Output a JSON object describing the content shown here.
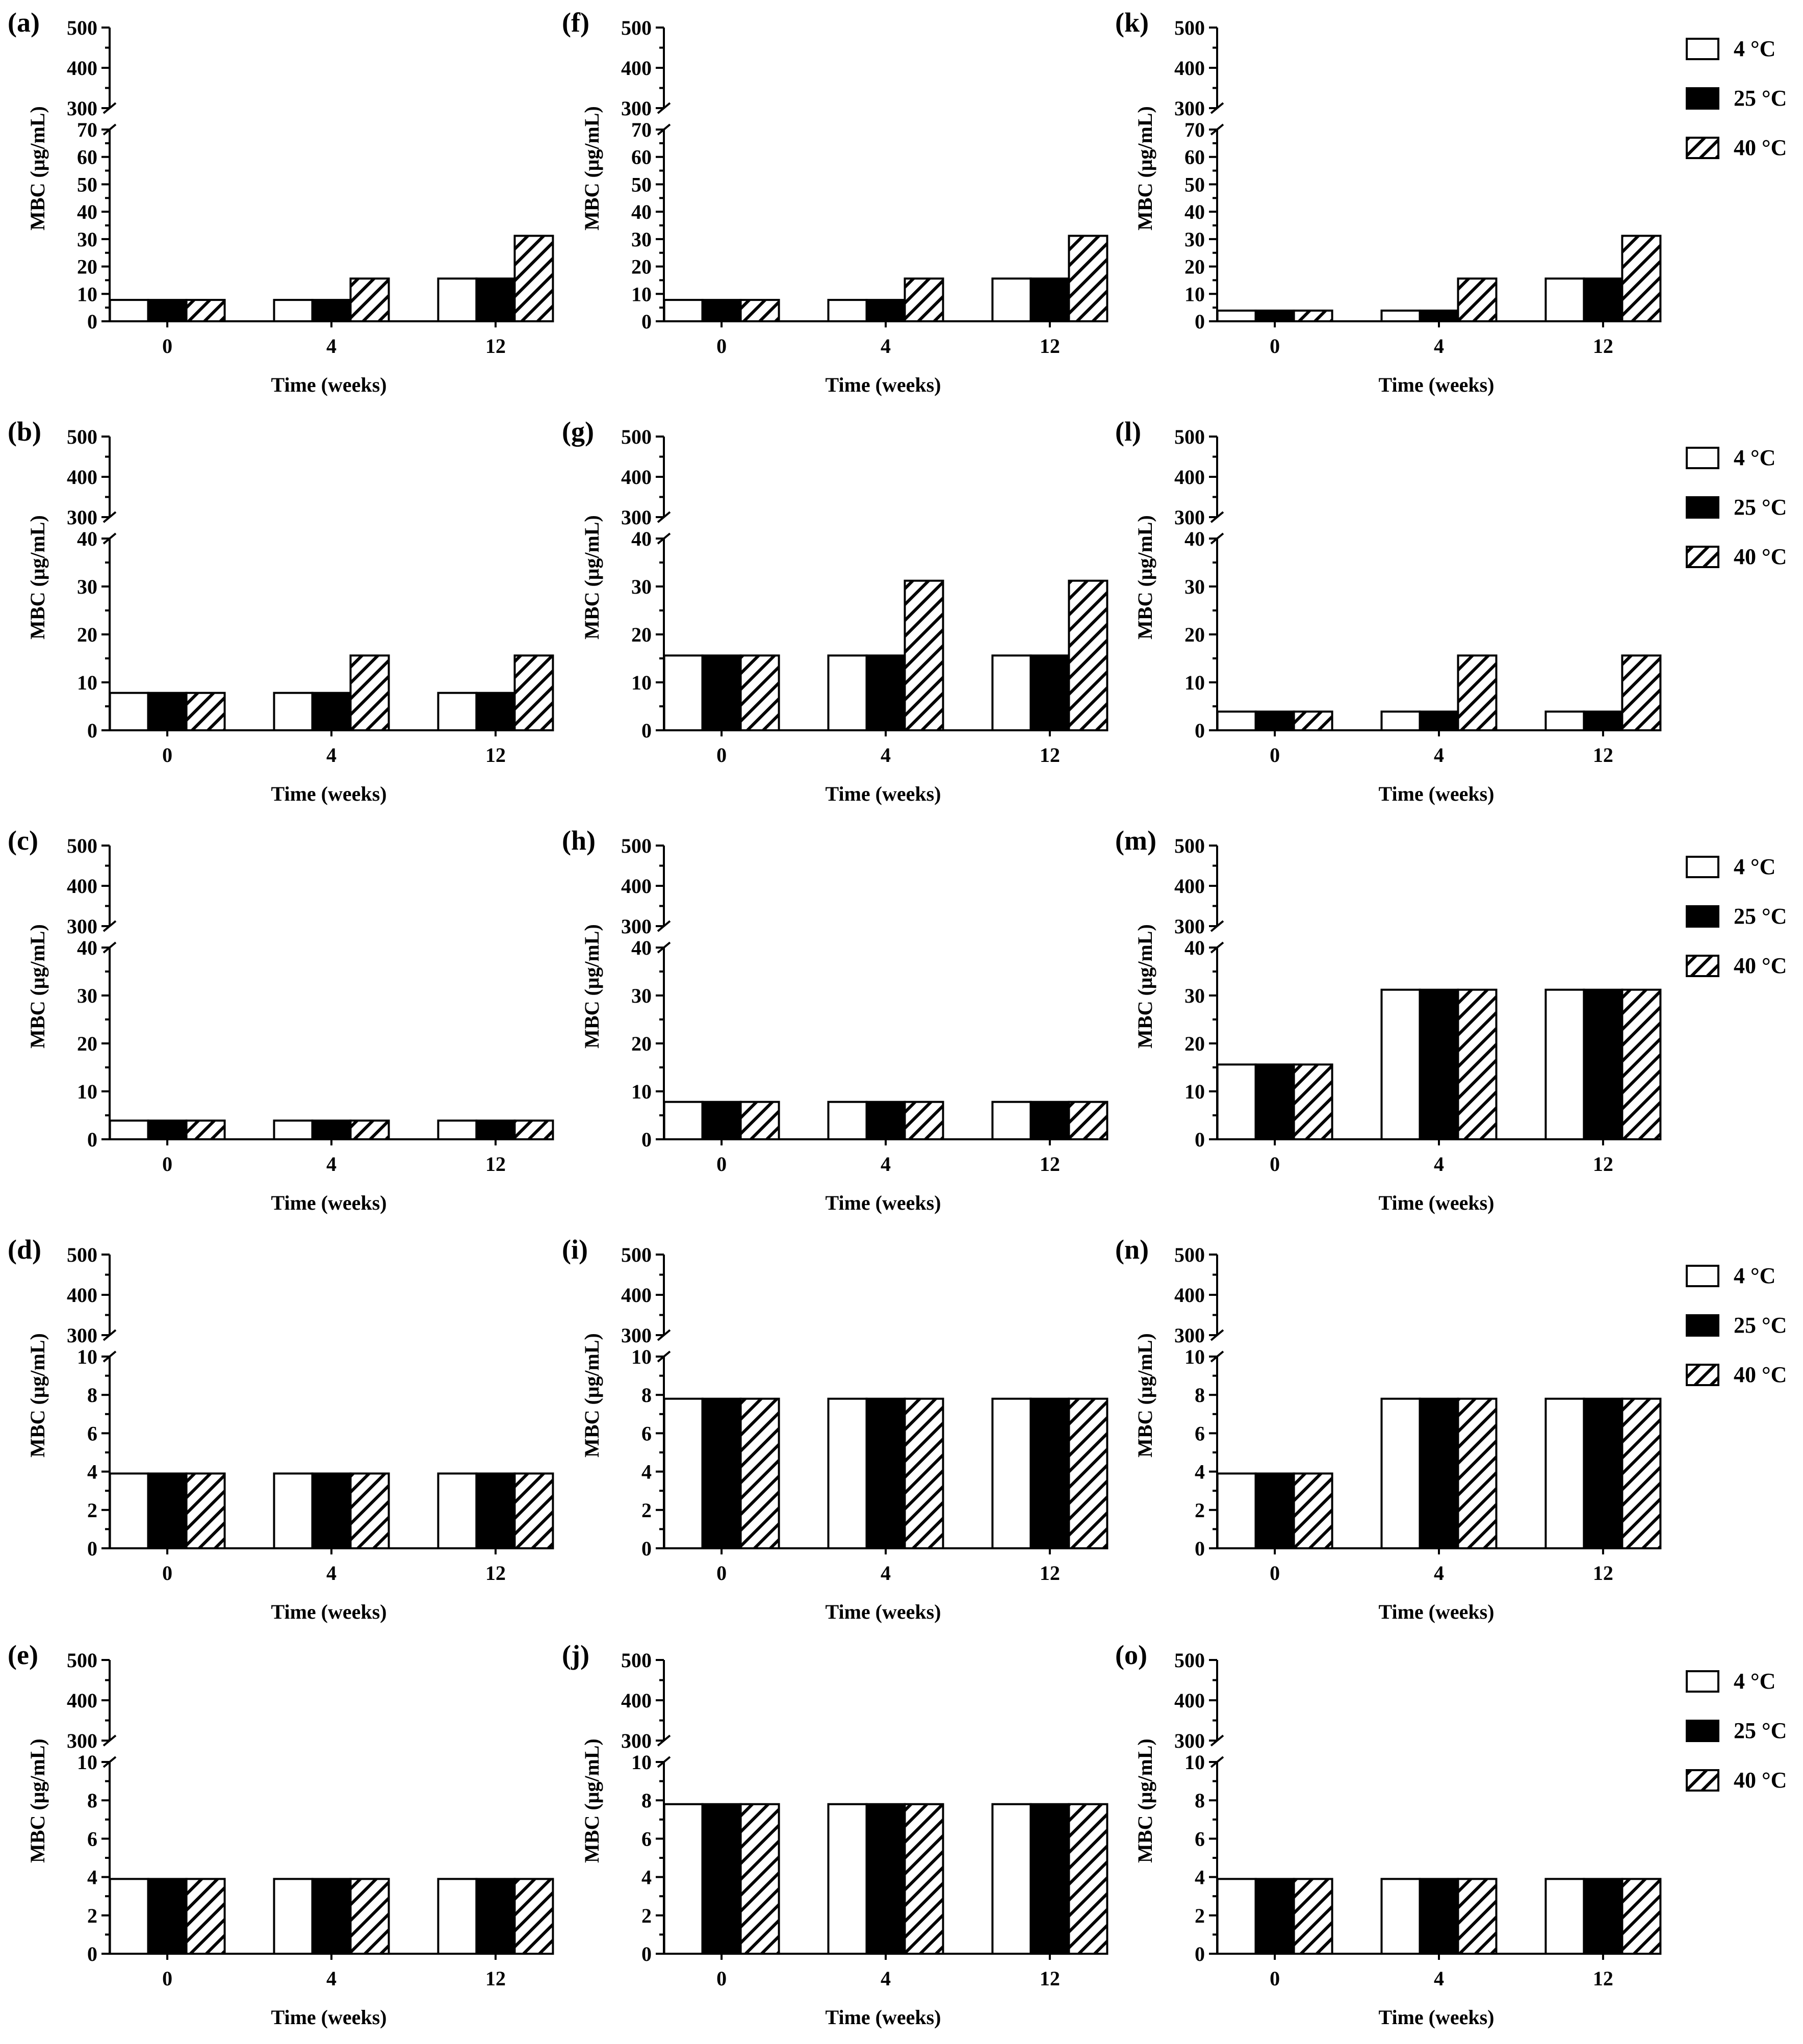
{
  "series_names": [
    "4 °C",
    "25 °C",
    "40 °C"
  ],
  "chart_data": [
    {
      "type": "bar",
      "panel_label": "(a)",
      "categories": [
        "0",
        "4",
        "12"
      ],
      "xlabel": "Time (weeks)",
      "ylabel": "MBC (μg/mL)",
      "upper_ticks": [
        "300",
        "400",
        "500"
      ],
      "lower_ticks": [
        "0",
        "10",
        "20",
        "30",
        "40",
        "50",
        "60",
        "70"
      ],
      "lower_ylim": [
        0,
        70
      ],
      "upper_ylim": [
        300,
        500
      ],
      "y_break": [
        70,
        300
      ],
      "series": [
        {
          "name": "4 °C",
          "values": [
            7.8,
            7.8,
            15.6
          ]
        },
        {
          "name": "25 °C",
          "values": [
            7.8,
            7.8,
            15.6
          ]
        },
        {
          "name": "40 °C",
          "values": [
            7.8,
            15.6,
            31.2
          ]
        }
      ]
    },
    {
      "type": "bar",
      "panel_label": "(b)",
      "categories": [
        "0",
        "4",
        "12"
      ],
      "xlabel": "Time (weeks)",
      "ylabel": "MBC (μg/mL)",
      "upper_ticks": [
        "300",
        "400",
        "500"
      ],
      "lower_ticks": [
        "0",
        "10",
        "20",
        "30",
        "40"
      ],
      "lower_ylim": [
        0,
        40
      ],
      "upper_ylim": [
        300,
        500
      ],
      "y_break": [
        40,
        300
      ],
      "series": [
        {
          "name": "4 °C",
          "values": [
            7.8,
            7.8,
            7.8
          ]
        },
        {
          "name": "25 °C",
          "values": [
            7.8,
            7.8,
            7.8
          ]
        },
        {
          "name": "40 °C",
          "values": [
            7.8,
            15.6,
            15.6
          ]
        }
      ]
    },
    {
      "type": "bar",
      "panel_label": "(c)",
      "categories": [
        "0",
        "4",
        "12"
      ],
      "xlabel": "Time (weeks)",
      "ylabel": "MBC (μg/mL)",
      "upper_ticks": [
        "300",
        "400",
        "500"
      ],
      "lower_ticks": [
        "0",
        "10",
        "20",
        "30",
        "40"
      ],
      "lower_ylim": [
        0,
        40
      ],
      "upper_ylim": [
        300,
        500
      ],
      "y_break": [
        40,
        300
      ],
      "series": [
        {
          "name": "4 °C",
          "values": [
            3.9,
            3.9,
            3.9
          ]
        },
        {
          "name": "25 °C",
          "values": [
            3.9,
            3.9,
            3.9
          ]
        },
        {
          "name": "40 °C",
          "values": [
            3.9,
            3.9,
            3.9
          ]
        }
      ]
    },
    {
      "type": "bar",
      "panel_label": "(d)",
      "categories": [
        "0",
        "4",
        "12"
      ],
      "xlabel": "Time (weeks)",
      "ylabel": "MBC (μg/mL)",
      "upper_ticks": [
        "300",
        "400",
        "500"
      ],
      "lower_ticks": [
        "0",
        "2",
        "4",
        "6",
        "8",
        "10"
      ],
      "lower_ylim": [
        0,
        10
      ],
      "upper_ylim": [
        300,
        500
      ],
      "y_break": [
        10,
        300
      ],
      "series": [
        {
          "name": "4 °C",
          "values": [
            3.9,
            3.9,
            3.9
          ]
        },
        {
          "name": "25 °C",
          "values": [
            3.9,
            3.9,
            3.9
          ]
        },
        {
          "name": "40 °C",
          "values": [
            3.9,
            3.9,
            3.9
          ]
        }
      ]
    },
    {
      "type": "bar",
      "panel_label": "(e)",
      "categories": [
        "0",
        "4",
        "12"
      ],
      "xlabel": "Time (weeks)",
      "ylabel": "MBC (μg/mL)",
      "upper_ticks": [
        "300",
        "400",
        "500"
      ],
      "lower_ticks": [
        "0",
        "2",
        "4",
        "6",
        "8",
        "10"
      ],
      "lower_ylim": [
        0,
        10
      ],
      "upper_ylim": [
        300,
        500
      ],
      "y_break": [
        10,
        300
      ],
      "series": [
        {
          "name": "4 °C",
          "values": [
            3.9,
            3.9,
            3.9
          ]
        },
        {
          "name": "25 °C",
          "values": [
            3.9,
            3.9,
            3.9
          ]
        },
        {
          "name": "40 °C",
          "values": [
            3.9,
            3.9,
            3.9
          ]
        }
      ]
    },
    {
      "type": "bar",
      "panel_label": "(f)",
      "categories": [
        "0",
        "4",
        "12"
      ],
      "xlabel": "Time (weeks)",
      "ylabel": "MBC (μg/mL)",
      "upper_ticks": [
        "300",
        "400",
        "500"
      ],
      "lower_ticks": [
        "0",
        "10",
        "20",
        "30",
        "40",
        "50",
        "60",
        "70"
      ],
      "lower_ylim": [
        0,
        70
      ],
      "upper_ylim": [
        300,
        500
      ],
      "y_break": [
        70,
        300
      ],
      "series": [
        {
          "name": "4 °C",
          "values": [
            7.8,
            7.8,
            15.6
          ]
        },
        {
          "name": "25 °C",
          "values": [
            7.8,
            7.8,
            15.6
          ]
        },
        {
          "name": "40 °C",
          "values": [
            7.8,
            15.6,
            31.2
          ]
        }
      ]
    },
    {
      "type": "bar",
      "panel_label": "(g)",
      "categories": [
        "0",
        "4",
        "12"
      ],
      "xlabel": "Time (weeks)",
      "ylabel": "MBC (μg/mL)",
      "upper_ticks": [
        "300",
        "400",
        "500"
      ],
      "lower_ticks": [
        "0",
        "10",
        "20",
        "30",
        "40"
      ],
      "lower_ylim": [
        0,
        40
      ],
      "upper_ylim": [
        300,
        500
      ],
      "y_break": [
        40,
        300
      ],
      "series": [
        {
          "name": "4 °C",
          "values": [
            15.6,
            15.6,
            15.6
          ]
        },
        {
          "name": "25 °C",
          "values": [
            15.6,
            15.6,
            15.6
          ]
        },
        {
          "name": "40 °C",
          "values": [
            15.6,
            31.2,
            31.2
          ]
        }
      ]
    },
    {
      "type": "bar",
      "panel_label": "(h)",
      "categories": [
        "0",
        "4",
        "12"
      ],
      "xlabel": "Time (weeks)",
      "ylabel": "MBC (μg/mL)",
      "upper_ticks": [
        "300",
        "400",
        "500"
      ],
      "lower_ticks": [
        "0",
        "10",
        "20",
        "30",
        "40"
      ],
      "lower_ylim": [
        0,
        40
      ],
      "upper_ylim": [
        300,
        500
      ],
      "y_break": [
        40,
        300
      ],
      "series": [
        {
          "name": "4 °C",
          "values": [
            7.8,
            7.8,
            7.8
          ]
        },
        {
          "name": "25 °C",
          "values": [
            7.8,
            7.8,
            7.8
          ]
        },
        {
          "name": "40 °C",
          "values": [
            7.8,
            7.8,
            7.8
          ]
        }
      ]
    },
    {
      "type": "bar",
      "panel_label": "(i)",
      "categories": [
        "0",
        "4",
        "12"
      ],
      "xlabel": "Time (weeks)",
      "ylabel": "MBC (μg/mL)",
      "upper_ticks": [
        "300",
        "400",
        "500"
      ],
      "lower_ticks": [
        "0",
        "2",
        "4",
        "6",
        "8",
        "10"
      ],
      "lower_ylim": [
        0,
        10
      ],
      "upper_ylim": [
        300,
        500
      ],
      "y_break": [
        10,
        300
      ],
      "series": [
        {
          "name": "4 °C",
          "values": [
            7.8,
            7.8,
            7.8
          ]
        },
        {
          "name": "25 °C",
          "values": [
            7.8,
            7.8,
            7.8
          ]
        },
        {
          "name": "40 °C",
          "values": [
            7.8,
            7.8,
            7.8
          ]
        }
      ]
    },
    {
      "type": "bar",
      "panel_label": "(j)",
      "categories": [
        "0",
        "4",
        "12"
      ],
      "xlabel": "Time (weeks)",
      "ylabel": "MBC (μg/mL)",
      "upper_ticks": [
        "300",
        "400",
        "500"
      ],
      "lower_ticks": [
        "0",
        "2",
        "4",
        "6",
        "8",
        "10"
      ],
      "lower_ylim": [
        0,
        10
      ],
      "upper_ylim": [
        300,
        500
      ],
      "y_break": [
        10,
        300
      ],
      "series": [
        {
          "name": "4 °C",
          "values": [
            7.8,
            7.8,
            7.8
          ]
        },
        {
          "name": "25 °C",
          "values": [
            7.8,
            7.8,
            7.8
          ]
        },
        {
          "name": "40 °C",
          "values": [
            7.8,
            7.8,
            7.8
          ]
        }
      ]
    },
    {
      "type": "bar",
      "panel_label": "(k)",
      "categories": [
        "0",
        "4",
        "12"
      ],
      "xlabel": "Time (weeks)",
      "ylabel": "MBC (μg/mL)",
      "upper_ticks": [
        "300",
        "400",
        "500"
      ],
      "lower_ticks": [
        "0",
        "10",
        "20",
        "30",
        "40",
        "50",
        "60",
        "70"
      ],
      "lower_ylim": [
        0,
        70
      ],
      "upper_ylim": [
        300,
        500
      ],
      "y_break": [
        70,
        300
      ],
      "series": [
        {
          "name": "4 °C",
          "values": [
            3.9,
            3.9,
            15.6
          ]
        },
        {
          "name": "25 °C",
          "values": [
            3.9,
            3.9,
            15.6
          ]
        },
        {
          "name": "40 °C",
          "values": [
            3.9,
            15.6,
            31.2
          ]
        }
      ]
    },
    {
      "type": "bar",
      "panel_label": "(l)",
      "categories": [
        "0",
        "4",
        "12"
      ],
      "xlabel": "Time (weeks)",
      "ylabel": "MBC (μg/mL)",
      "upper_ticks": [
        "300",
        "400",
        "500"
      ],
      "lower_ticks": [
        "0",
        "10",
        "20",
        "30",
        "40"
      ],
      "lower_ylim": [
        0,
        40
      ],
      "upper_ylim": [
        300,
        500
      ],
      "y_break": [
        40,
        300
      ],
      "series": [
        {
          "name": "4 °C",
          "values": [
            3.9,
            3.9,
            3.9
          ]
        },
        {
          "name": "25 °C",
          "values": [
            3.9,
            3.9,
            3.9
          ]
        },
        {
          "name": "40 °C",
          "values": [
            3.9,
            15.6,
            15.6
          ]
        }
      ]
    },
    {
      "type": "bar",
      "panel_label": "(m)",
      "categories": [
        "0",
        "4",
        "12"
      ],
      "xlabel": "Time (weeks)",
      "ylabel": "MBC (μg/mL)",
      "upper_ticks": [
        "300",
        "400",
        "500"
      ],
      "lower_ticks": [
        "0",
        "10",
        "20",
        "30",
        "40"
      ],
      "lower_ylim": [
        0,
        40
      ],
      "upper_ylim": [
        300,
        500
      ],
      "y_break": [
        40,
        300
      ],
      "series": [
        {
          "name": "4 °C",
          "values": [
            15.6,
            31.2,
            31.2
          ]
        },
        {
          "name": "25 °C",
          "values": [
            15.6,
            31.2,
            31.2
          ]
        },
        {
          "name": "40 °C",
          "values": [
            15.6,
            31.2,
            31.2
          ]
        }
      ]
    },
    {
      "type": "bar",
      "panel_label": "(n)",
      "categories": [
        "0",
        "4",
        "12"
      ],
      "xlabel": "Time (weeks)",
      "ylabel": "MBC (μg/mL)",
      "upper_ticks": [
        "300",
        "400",
        "500"
      ],
      "lower_ticks": [
        "0",
        "2",
        "4",
        "6",
        "8",
        "10"
      ],
      "lower_ylim": [
        0,
        10
      ],
      "upper_ylim": [
        300,
        500
      ],
      "y_break": [
        10,
        300
      ],
      "series": [
        {
          "name": "4 °C",
          "values": [
            3.9,
            7.8,
            7.8
          ]
        },
        {
          "name": "25 °C",
          "values": [
            3.9,
            7.8,
            7.8
          ]
        },
        {
          "name": "40 °C",
          "values": [
            3.9,
            7.8,
            7.8
          ]
        }
      ]
    },
    {
      "type": "bar",
      "panel_label": "(o)",
      "categories": [
        "0",
        "4",
        "12"
      ],
      "xlabel": "Time (weeks)",
      "ylabel": "MBC (μg/mL)",
      "upper_ticks": [
        "300",
        "400",
        "500"
      ],
      "lower_ticks": [
        "0",
        "2",
        "4",
        "6",
        "8",
        "10"
      ],
      "lower_ylim": [
        0,
        10
      ],
      "upper_ylim": [
        300,
        500
      ],
      "y_break": [
        10,
        300
      ],
      "series": [
        {
          "name": "4 °C",
          "values": [
            3.9,
            3.9,
            3.9
          ]
        },
        {
          "name": "25 °C",
          "values": [
            3.9,
            3.9,
            3.9
          ]
        },
        {
          "name": "40 °C",
          "values": [
            3.9,
            3.9,
            3.9
          ]
        }
      ]
    }
  ]
}
